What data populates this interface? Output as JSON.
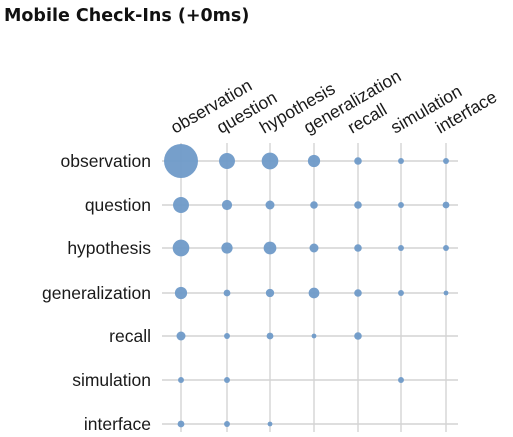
{
  "chart_data": {
    "type": "scatter",
    "title": "Mobile Check-Ins (+0ms)",
    "rows": [
      "observation",
      "question",
      "hypothesis",
      "generalization",
      "recall",
      "simulation",
      "interface"
    ],
    "columns": [
      "observation",
      "question",
      "hypothesis",
      "generalization",
      "recall",
      "simulation",
      "interface"
    ],
    "values": [
      [
        100,
        22,
        24,
        13,
        5,
        3,
        3
      ],
      [
        22,
        9,
        7,
        5,
        5,
        3,
        4
      ],
      [
        24,
        11,
        14,
        7,
        5,
        3,
        3
      ],
      [
        13,
        4,
        6,
        10,
        5,
        3,
        2
      ],
      [
        7,
        3,
        4,
        2,
        5,
        0,
        0
      ],
      [
        3,
        3,
        0,
        0,
        0,
        3,
        0
      ],
      [
        4,
        3,
        2,
        0,
        0,
        0,
        0
      ]
    ],
    "point_color": "#6f9ac8",
    "grid": true
  }
}
